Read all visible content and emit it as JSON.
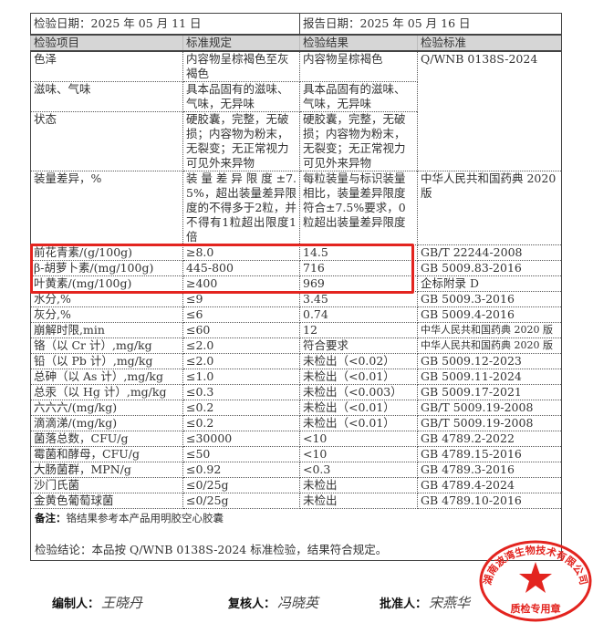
{
  "header": {
    "inspection_date": "检验日期：2025 年 05 月 11 日",
    "report_date": "报告日期：2025 年 05 月 16 日"
  },
  "columns": [
    "检验项目",
    "标准规定",
    "检验结果",
    "检验标准"
  ],
  "rows_top": [
    {
      "item": "色泽",
      "spec": "内容物呈棕褐色至灰褐色",
      "result": "内容物呈棕褐色"
    },
    {
      "item": "滋味、气味",
      "spec": "具本品固有的滋味、气味，无异味",
      "result": "具本品固有的滋味、气味，无异味"
    },
    {
      "item": "状态",
      "spec": "硬胶囊，完整，无破损；内容物为粉末，无裂变；无正常视力可见外来异物",
      "result": "硬胶囊，完整，无破损；内容物为粉末，无裂变；无正常视力可见外来异物"
    }
  ],
  "shared_standard_top": "Q/WNB 0138S-2024",
  "row_fill": {
    "item": "装量差异，%",
    "spec": "装量差异限度±7.5%，超出装量差异限度的不得多于2粒，并不得有1粒超出限度1倍",
    "result": "每粒装量与标识装量相比，装量差异限度符合±7.5%要求，0粒超出装量差异限度",
    "standard": "中华人民共和国药典 2020 版"
  },
  "rows": [
    {
      "item": "前花青素/(g/100g)",
      "spec": "≥8.0",
      "result": "14.5",
      "standard": "GB/T 22244-2008",
      "highlighted": true
    },
    {
      "item": "β-胡萝卜素/(mg/100g)",
      "spec": "445-800",
      "result": "716",
      "standard": "GB 5009.83-2016",
      "highlighted": true
    },
    {
      "item": "叶黄素/(mg/100g)",
      "spec": "≥400",
      "result": "969",
      "standard": "企标附录 D",
      "highlighted": true
    },
    {
      "item": "水分,%",
      "spec": "≤9",
      "result": "3.45",
      "standard": "GB 5009.3-2016"
    },
    {
      "item": "灰分,%",
      "spec": "≤6",
      "result": "0.74",
      "standard": "GB 5009.4-2016"
    },
    {
      "item": "崩解时限,min",
      "spec": "≤60",
      "result": "12",
      "standard": "中华人民共和国药典 2020 版"
    },
    {
      "item": "铬（以 Cr 计）,mg/kg",
      "spec": "≤2.0",
      "result": "符合要求",
      "standard": "中华人民共和国药典 2020 版"
    },
    {
      "item": "铅（以 Pb 计）,mg/kg",
      "spec": "≤2.0",
      "result": "未检出（<0.02）",
      "standard": "GB 5009.12-2023"
    },
    {
      "item": "总砷（以 As 计）,mg/kg",
      "spec": "≤1.0",
      "result": "未检出（<0.01）",
      "standard": "GB 5009.11-2024"
    },
    {
      "item": "总汞（以 Hg 计）,mg/kg",
      "spec": "≤0.3",
      "result": "未检出（<0.003）",
      "standard": "GB 5009.17-2021"
    },
    {
      "item": "六六六/(mg/kg)",
      "spec": "≤0.2",
      "result": "未检出（<0.01）",
      "standard": "GB/T 5009.19-2008"
    },
    {
      "item": "滴滴涕/(mg/kg)",
      "spec": "≤0.2",
      "result": "未检出（<0.01）",
      "standard": "GB/T 5009.19-2008"
    },
    {
      "item": "菌落总数，CFU/g",
      "spec": "≤30000",
      "result": "<10",
      "standard": "GB 4789.2-2022"
    },
    {
      "item": "霉菌和酵母，CFU/g",
      "spec": "≤50",
      "result": "<10",
      "standard": "GB 4789.15-2016"
    },
    {
      "item": "大肠菌群，MPN/g",
      "spec": "≤0.92",
      "result": "<0.3",
      "standard": "GB 4789.3-2016"
    },
    {
      "item": "沙门氏菌",
      "spec": "≤0/25g",
      "result": "未检出",
      "standard": "GB 4789.4-2024"
    },
    {
      "item": "金黄色葡萄球菌",
      "spec": "≤0/25g",
      "result": "未检出",
      "standard": "GB 4789.10-2016"
    }
  ],
  "remark_label": "备注：",
  "remark": "铬结果参考本产品用明胶空心胶囊",
  "conclusion": "检验结论：本品按 Q/WNB 0138S-2024 标准检验，结果符合规定。",
  "signatures": {
    "compiler_label": "编制人：",
    "compiler": "王晓丹",
    "reviewer_label": "复核人：",
    "reviewer": "冯晓英",
    "approver_label": "批准人：",
    "approver": "宋燕华"
  },
  "stamp": {
    "company": "湖南波湾生物技术有限公司",
    "purpose": "质检专用章",
    "color": "#e3241f"
  },
  "highlight_color": "#e3241f"
}
